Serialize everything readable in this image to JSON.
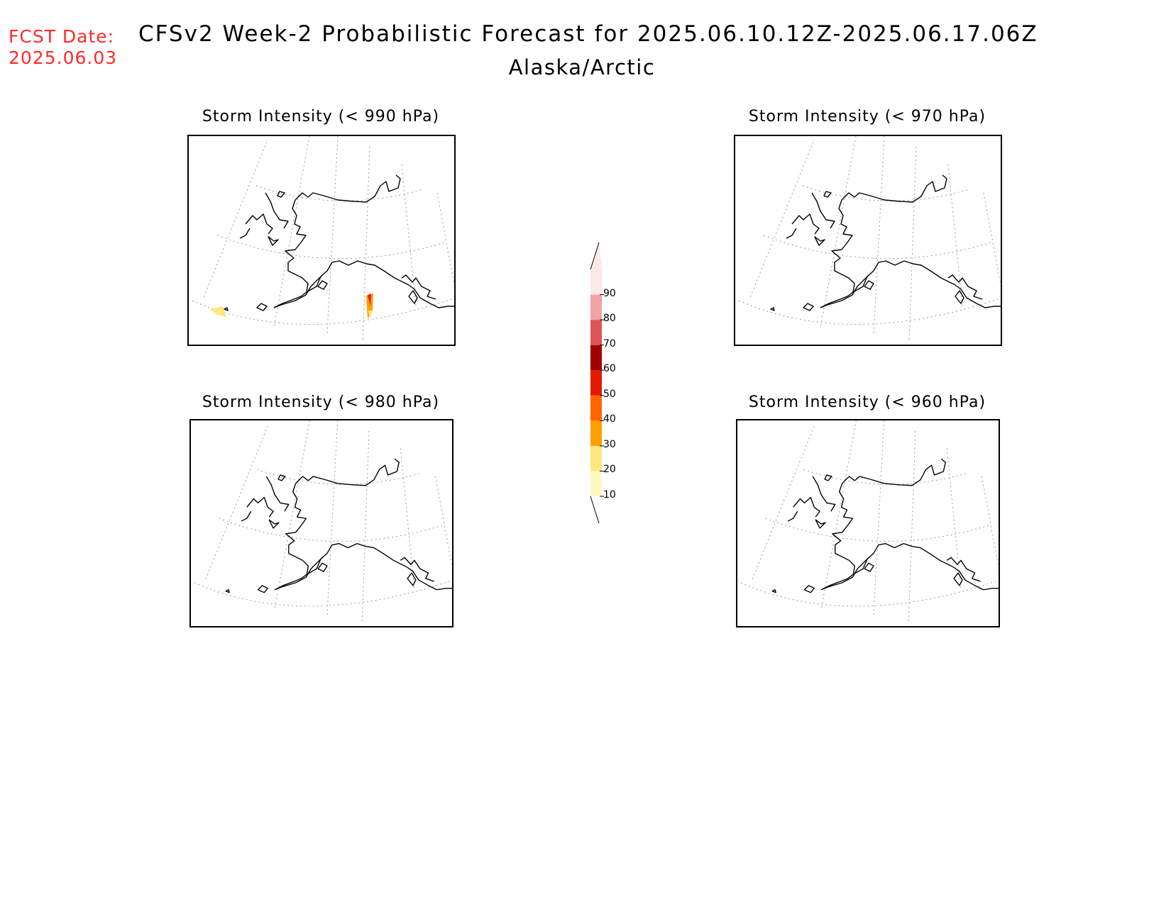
{
  "header": {
    "fcst_label": "FCST Date:",
    "fcst_date": "2025.06.03",
    "title": "CFSv2 Week-2 Probabilistic Forecast for 2025.06.10.12Z-2025.06.17.06Z",
    "subtitle": "Alaska/Arctic"
  },
  "panels": [
    {
      "title": "Storm Intensity (< 990 hPa)",
      "has_shading": true
    },
    {
      "title": "Storm Intensity (< 970 hPa)",
      "has_shading": false
    },
    {
      "title": "Storm Intensity (< 980 hPa)",
      "has_shading": false
    },
    {
      "title": "Storm Intensity (< 960 hPa)",
      "has_shading": false
    }
  ],
  "colorbar": {
    "levels": [
      "10",
      "20",
      "30",
      "40",
      "50",
      "60",
      "70",
      "80",
      "90"
    ],
    "colors": [
      "#fff9c0",
      "#ffe680",
      "#ff9f00",
      "#ff6600",
      "#e31a00",
      "#a00000",
      "#dd5555",
      "#f2a2a2",
      "#fce8e8"
    ],
    "label_color": "#000000"
  },
  "colors": {
    "fcst_text": "#ff2a2a",
    "coastline": "#000000",
    "graticule": "#9a9a9a"
  }
}
